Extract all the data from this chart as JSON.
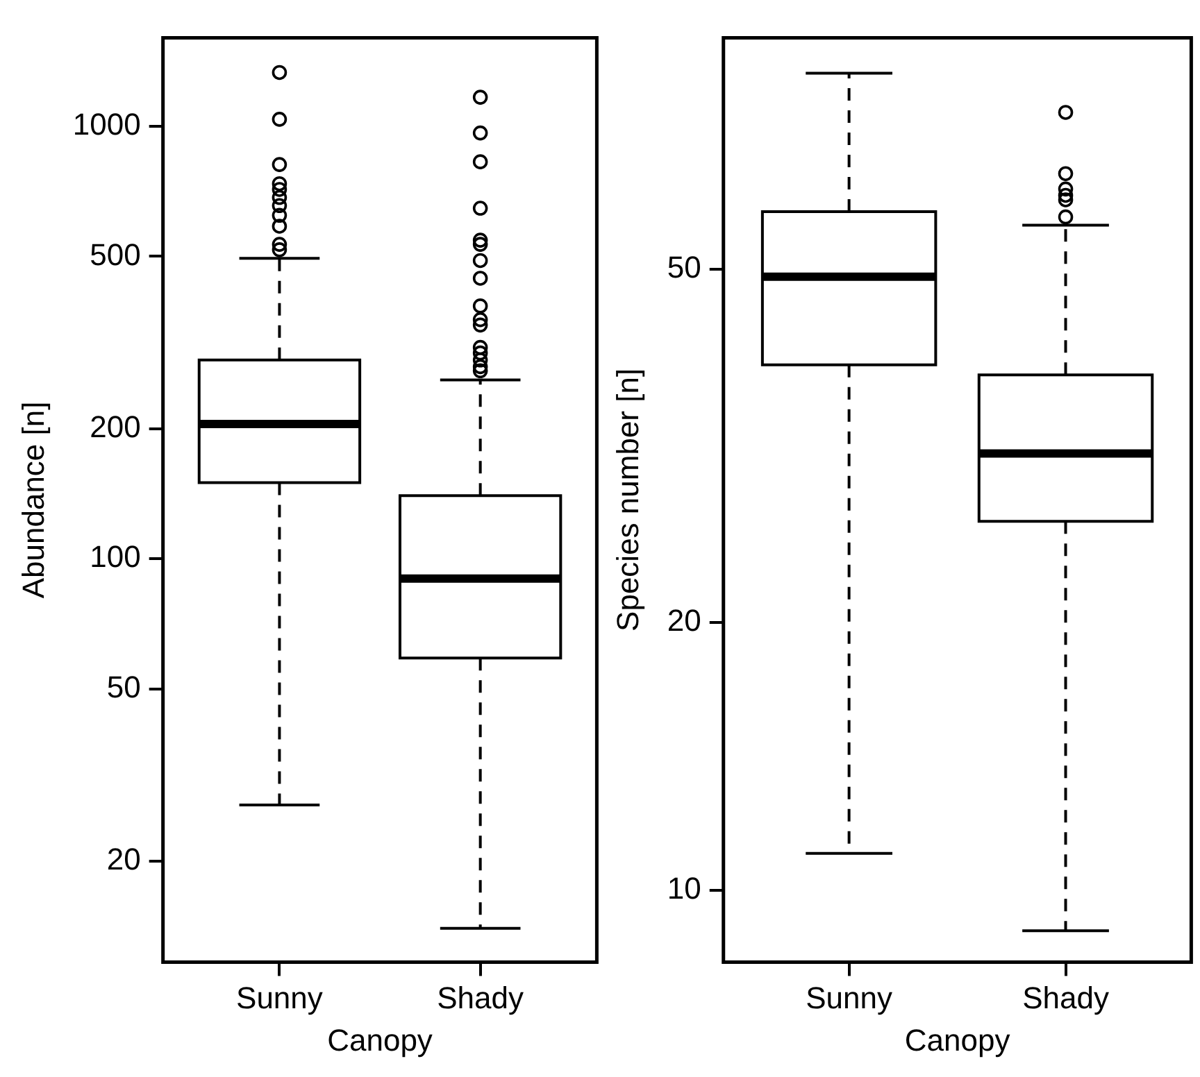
{
  "chart_data": [
    {
      "type": "box",
      "categories": [
        "Sunny",
        "Shady"
      ],
      "xlabel": "Canopy",
      "ylabel": "Abundance [n]",
      "log": true,
      "grid": false,
      "ylim": [
        11.7,
        1600
      ],
      "yticks": [
        20,
        50,
        100,
        200,
        500,
        1000
      ],
      "boxes": [
        {
          "low": 27,
          "q1": 150,
          "median": 205,
          "q3": 288,
          "high": 495,
          "outliers": [
            1330,
            1037,
            815,
            736,
            714,
            684,
            655,
            622,
            587,
            533,
            518
          ]
        },
        {
          "low": 14,
          "q1": 59,
          "median": 90,
          "q3": 140,
          "high": 259,
          "outliers": [
            1166,
            964,
            827,
            646,
            545,
            533,
            489,
            445,
            384,
            357,
            347,
            308,
            299,
            288,
            278,
            272
          ]
        }
      ]
    },
    {
      "type": "box",
      "categories": [
        "Sunny",
        "Shady"
      ],
      "xlabel": "Canopy",
      "ylabel": "Species number [n]",
      "log": true,
      "grid": false,
      "ylim": [
        8.3,
        91
      ],
      "yticks": [
        10,
        20,
        50
      ],
      "boxes": [
        {
          "low": 11,
          "q1": 39,
          "median": 49,
          "q3": 58,
          "high": 83
        },
        {
          "low": 9,
          "q1": 26,
          "median": 31,
          "q3": 38,
          "high": 56,
          "outliers": [
            75,
            64,
            61.5,
            60.5,
            59.8,
            57.2
          ]
        }
      ]
    }
  ]
}
